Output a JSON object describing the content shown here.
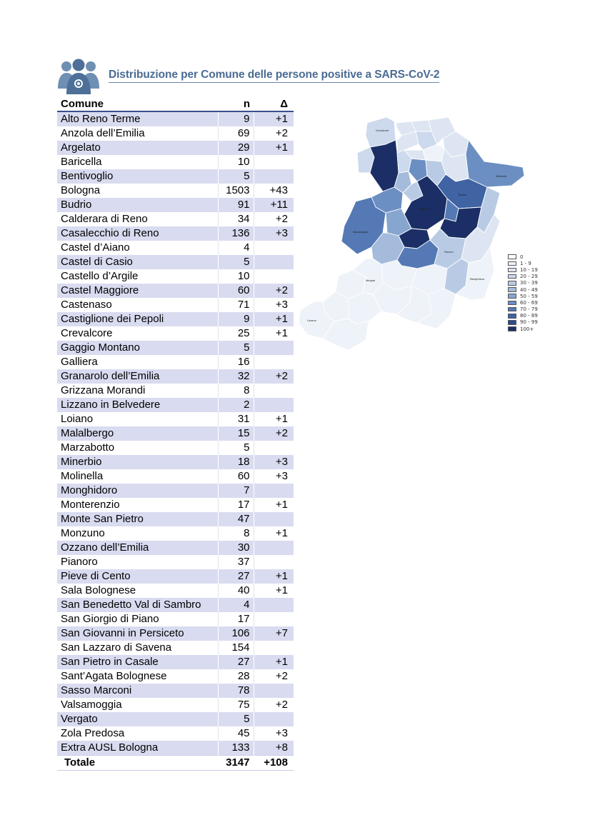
{
  "header": {
    "title": "Distribuzione per Comune delle persone positive a SARS-CoV-2",
    "icon": "people-group-icon"
  },
  "table": {
    "columns": [
      "Comune",
      "n",
      "Δ"
    ],
    "rows": [
      {
        "comune": "Alto Reno Terme",
        "n": "9",
        "delta": "+1"
      },
      {
        "comune": "Anzola dell’Emilia",
        "n": "69",
        "delta": "+2"
      },
      {
        "comune": "Argelato",
        "n": "29",
        "delta": "+1"
      },
      {
        "comune": "Baricella",
        "n": "10",
        "delta": ""
      },
      {
        "comune": "Bentivoglio",
        "n": "5",
        "delta": ""
      },
      {
        "comune": "Bologna",
        "n": "1503",
        "delta": "+43"
      },
      {
        "comune": "Budrio",
        "n": "91",
        "delta": "+11"
      },
      {
        "comune": "Calderara di Reno",
        "n": "34",
        "delta": "+2"
      },
      {
        "comune": "Casalecchio di Reno",
        "n": "136",
        "delta": "+3"
      },
      {
        "comune": "Castel d’Aiano",
        "n": "4",
        "delta": ""
      },
      {
        "comune": "Castel di Casio",
        "n": "5",
        "delta": ""
      },
      {
        "comune": "Castello d’Argile",
        "n": "10",
        "delta": ""
      },
      {
        "comune": "Castel Maggiore",
        "n": "60",
        "delta": "+2"
      },
      {
        "comune": "Castenaso",
        "n": "71",
        "delta": "+3"
      },
      {
        "comune": "Castiglione dei Pepoli",
        "n": "9",
        "delta": "+1"
      },
      {
        "comune": "Crevalcore",
        "n": "25",
        "delta": "+1"
      },
      {
        "comune": "Gaggio Montano",
        "n": "5",
        "delta": ""
      },
      {
        "comune": "Galliera",
        "n": "16",
        "delta": ""
      },
      {
        "comune": "Granarolo dell’Emilia",
        "n": "32",
        "delta": "+2"
      },
      {
        "comune": "Grizzana Morandi",
        "n": "8",
        "delta": ""
      },
      {
        "comune": "Lizzano in Belvedere",
        "n": "2",
        "delta": ""
      },
      {
        "comune": "Loiano",
        "n": "31",
        "delta": "+1"
      },
      {
        "comune": "Malalbergo",
        "n": "15",
        "delta": "+2"
      },
      {
        "comune": "Marzabotto",
        "n": "5",
        "delta": ""
      },
      {
        "comune": "Minerbio",
        "n": "18",
        "delta": "+3"
      },
      {
        "comune": "Molinella",
        "n": "60",
        "delta": "+3"
      },
      {
        "comune": "Monghidoro",
        "n": "7",
        "delta": ""
      },
      {
        "comune": "Monterenzio",
        "n": "17",
        "delta": "+1"
      },
      {
        "comune": "Monte San Pietro",
        "n": "47",
        "delta": ""
      },
      {
        "comune": "Monzuno",
        "n": "8",
        "delta": "+1"
      },
      {
        "comune": "Ozzano dell’Emilia",
        "n": "30",
        "delta": ""
      },
      {
        "comune": "Pianoro",
        "n": "37",
        "delta": ""
      },
      {
        "comune": "Pieve di Cento",
        "n": "27",
        "delta": "+1"
      },
      {
        "comune": "Sala Bolognese",
        "n": "40",
        "delta": "+1"
      },
      {
        "comune": "San Benedetto Val di Sambro",
        "n": "4",
        "delta": ""
      },
      {
        "comune": "San Giorgio di Piano",
        "n": "17",
        "delta": ""
      },
      {
        "comune": "San Giovanni in Persiceto",
        "n": "106",
        "delta": "+7"
      },
      {
        "comune": "San Lazzaro di Savena",
        "n": "154",
        "delta": ""
      },
      {
        "comune": "San Pietro in Casale",
        "n": "27",
        "delta": "+1"
      },
      {
        "comune": "Sant’Agata Bolognese",
        "n": "28",
        "delta": "+2"
      },
      {
        "comune": "Sasso Marconi",
        "n": "78",
        "delta": ""
      },
      {
        "comune": "Valsamoggia",
        "n": "75",
        "delta": "+2"
      },
      {
        "comune": "Vergato",
        "n": "5",
        "delta": ""
      },
      {
        "comune": "Zola Predosa",
        "n": "45",
        "delta": "+3"
      },
      {
        "comune": "Extra AUSL Bologna",
        "n": "133",
        "delta": "+8"
      }
    ],
    "total": {
      "label": "Totale",
      "n": "3147",
      "delta": "+108"
    }
  },
  "legend": {
    "items": [
      {
        "label": "0",
        "color": "#ffffff"
      },
      {
        "label": "1 - 9",
        "color": "#eef2f9"
      },
      {
        "label": "10 - 19",
        "color": "#dde5f2"
      },
      {
        "label": "20 - 29",
        "color": "#cdd9ec"
      },
      {
        "label": "30 - 39",
        "color": "#b9cbe4"
      },
      {
        "label": "40 - 49",
        "color": "#a4bbdb"
      },
      {
        "label": "50 - 59",
        "color": "#87a6cf"
      },
      {
        "label": "60 - 69",
        "color": "#6b8fc3"
      },
      {
        "label": "70 - 79",
        "color": "#5479b5"
      },
      {
        "label": "80 - 89",
        "color": "#3f63a3"
      },
      {
        "label": "90 - 99",
        "color": "#2c4b8d"
      },
      {
        "label": "100+",
        "color": "#1b2f66"
      }
    ]
  }
}
